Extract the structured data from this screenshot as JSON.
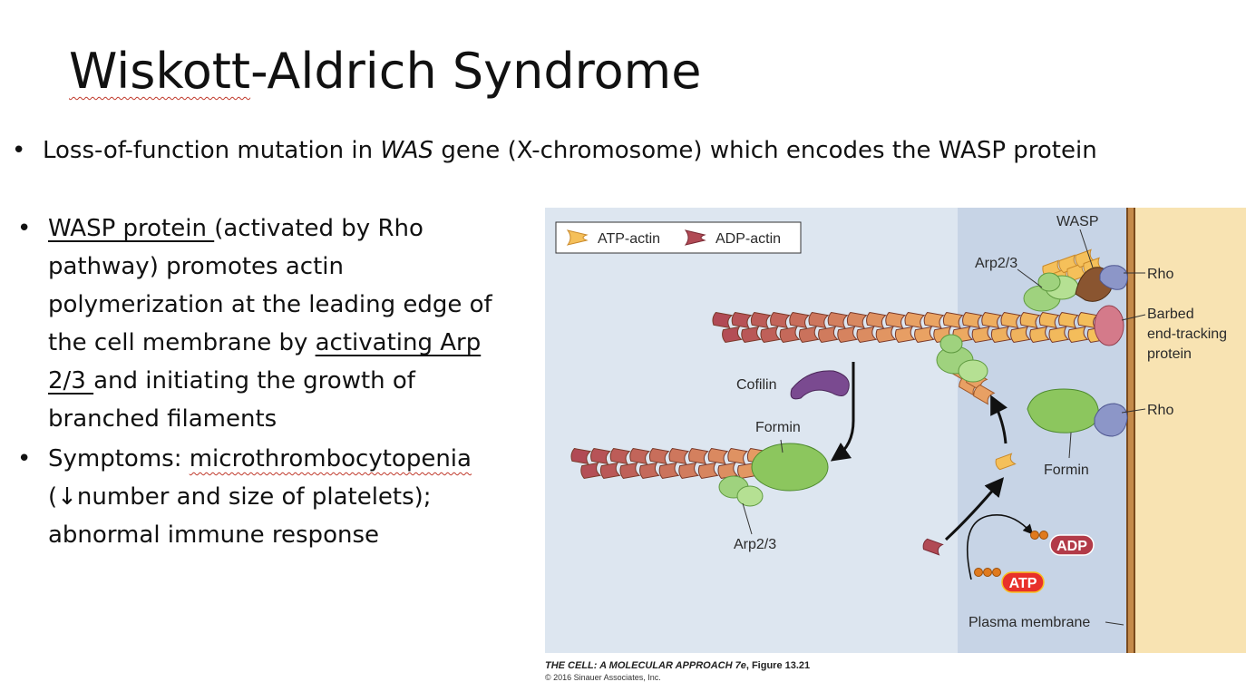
{
  "slide": {
    "title": "Wiskott-Aldrich Syndrome",
    "bullet_char": "•",
    "bullet1": {
      "part1": "Loss-of-function mutation in ",
      "gene": "WAS",
      "part2": " gene (X-chromosome) which encodes the WASP protein"
    },
    "bullet2": {
      "wasp": "WASP protein ",
      "part1": "(activated by Rho pathway) promotes actin polymerization at the leading edge of the cell membrane by ",
      "activating": "activating Arp 2/3 ",
      "part2": "and initiating the growth of branched filaments"
    },
    "bullet3": {
      "part1": "Symptoms: ",
      "term": "microthrombocytopenia",
      "part2": " (↓number and size of platelets); abnormal immune response"
    }
  },
  "figure": {
    "legend": {
      "atp_actin": "ATP-actin",
      "adp_actin": "ADP-actin"
    },
    "labels": {
      "wasp": "WASP",
      "arp23_top": "Arp2/3",
      "rho_top": "Rho",
      "barbed_1": "Barbed",
      "barbed_2": "end-tracking",
      "barbed_3": "protein",
      "cofilin": "Cofilin",
      "formin_left": "Formin",
      "arp23_bottom": "Arp2/3",
      "rho_bottom": "Rho",
      "formin_right": "Formin",
      "adp": "ADP",
      "atp": "ATP",
      "plasma_membrane": "Plasma membrane"
    },
    "colors": {
      "background": "#dde6f0",
      "membrane_zone": "#c7d4e6",
      "extracellular": "#f8e3b2",
      "membrane_line": "#a36a2c",
      "atp_actin": "#f5c05a",
      "atp_actin_mid": "#e8a064",
      "adp_actin": "#b14a55",
      "arp23": "#9fd27e",
      "formin": "#8cc65e",
      "cofilin": "#7a4a90",
      "wasp": "#8a5530",
      "rho": "#8c96c8",
      "barbed_cap": "#d47a8a",
      "atp_badge": "#e8302a",
      "adp_badge": "#b23a48",
      "phosphate": "#e07a1e"
    },
    "caption": {
      "book": "THE CELL: A MOLECULAR APPROACH 7e",
      "figure": ", Figure 13.21",
      "copyright": "© 2016 Sinauer Associates, Inc."
    }
  }
}
